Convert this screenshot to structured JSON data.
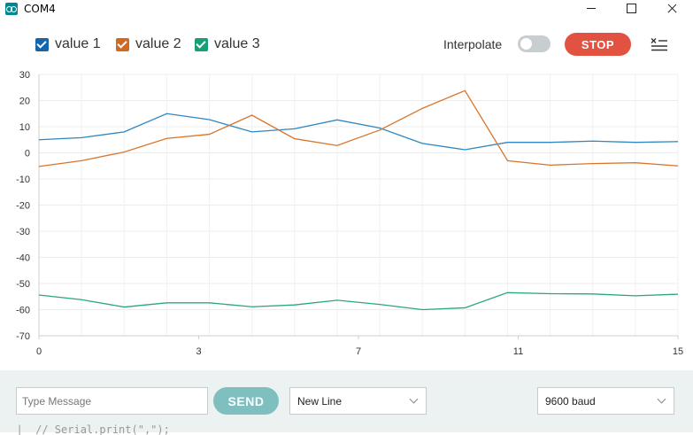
{
  "window": {
    "title": "COM4"
  },
  "legend": [
    {
      "label": "value 1",
      "color": "#1f77b4"
    },
    {
      "label": "value 2",
      "color": "#d2691e"
    },
    {
      "label": "value 3",
      "color": "#1a9e77"
    }
  ],
  "toolbar": {
    "interpolate_label": "Interpolate",
    "interpolate_on": false,
    "stop_label": "STOP",
    "clear_icon": "clear-list-icon"
  },
  "chart_data": {
    "type": "line",
    "xlim": [
      0,
      15
    ],
    "ylim": [
      -70,
      30
    ],
    "x_ticks": [
      "0",
      "3",
      "7",
      "11",
      "15"
    ],
    "x_tick_values": [
      0,
      3.75,
      7.5,
      11.25,
      15
    ],
    "y_ticks": [
      "30",
      "20",
      "10",
      "0",
      "-10",
      "-20",
      "-30",
      "-40",
      "-50",
      "-60",
      "-70"
    ],
    "y_tick_values": [
      30,
      20,
      10,
      0,
      -10,
      -20,
      -30,
      -40,
      -50,
      -60,
      -70
    ],
    "grid": true,
    "x": [
      0,
      1,
      2,
      3,
      4,
      5,
      6,
      7,
      8,
      9,
      10,
      11,
      12,
      13,
      14,
      15
    ],
    "series": [
      {
        "name": "value 1",
        "color": "#2f86c0",
        "values": [
          5,
          5.8,
          8,
          15,
          12.7,
          8,
          9.2,
          12.6,
          9.5,
          3.6,
          1.2,
          4,
          4,
          4.5,
          4,
          4.3
        ]
      },
      {
        "name": "value 2",
        "color": "#d9752b",
        "values": [
          -5.2,
          -3,
          0.3,
          5.5,
          7.1,
          14.4,
          5.4,
          2.8,
          8.7,
          17,
          23.8,
          -3,
          -4.7,
          -4.1,
          -3.8,
          -5
        ]
      },
      {
        "name": "value 3",
        "color": "#2aa87a",
        "values": [
          -54.4,
          -56.2,
          -59,
          -57.4,
          -57.4,
          -58.9,
          -58.2,
          -56.4,
          -58,
          -60,
          -59.3,
          -53.5,
          -53.9,
          -54,
          -54.7,
          -54.1
        ]
      }
    ]
  },
  "bottom": {
    "message_placeholder": "Type Message",
    "send_label": "SEND",
    "line_ending": "New Line",
    "baud": "9600 baud"
  },
  "background_code": "  |  // Serial.print(\",\");"
}
